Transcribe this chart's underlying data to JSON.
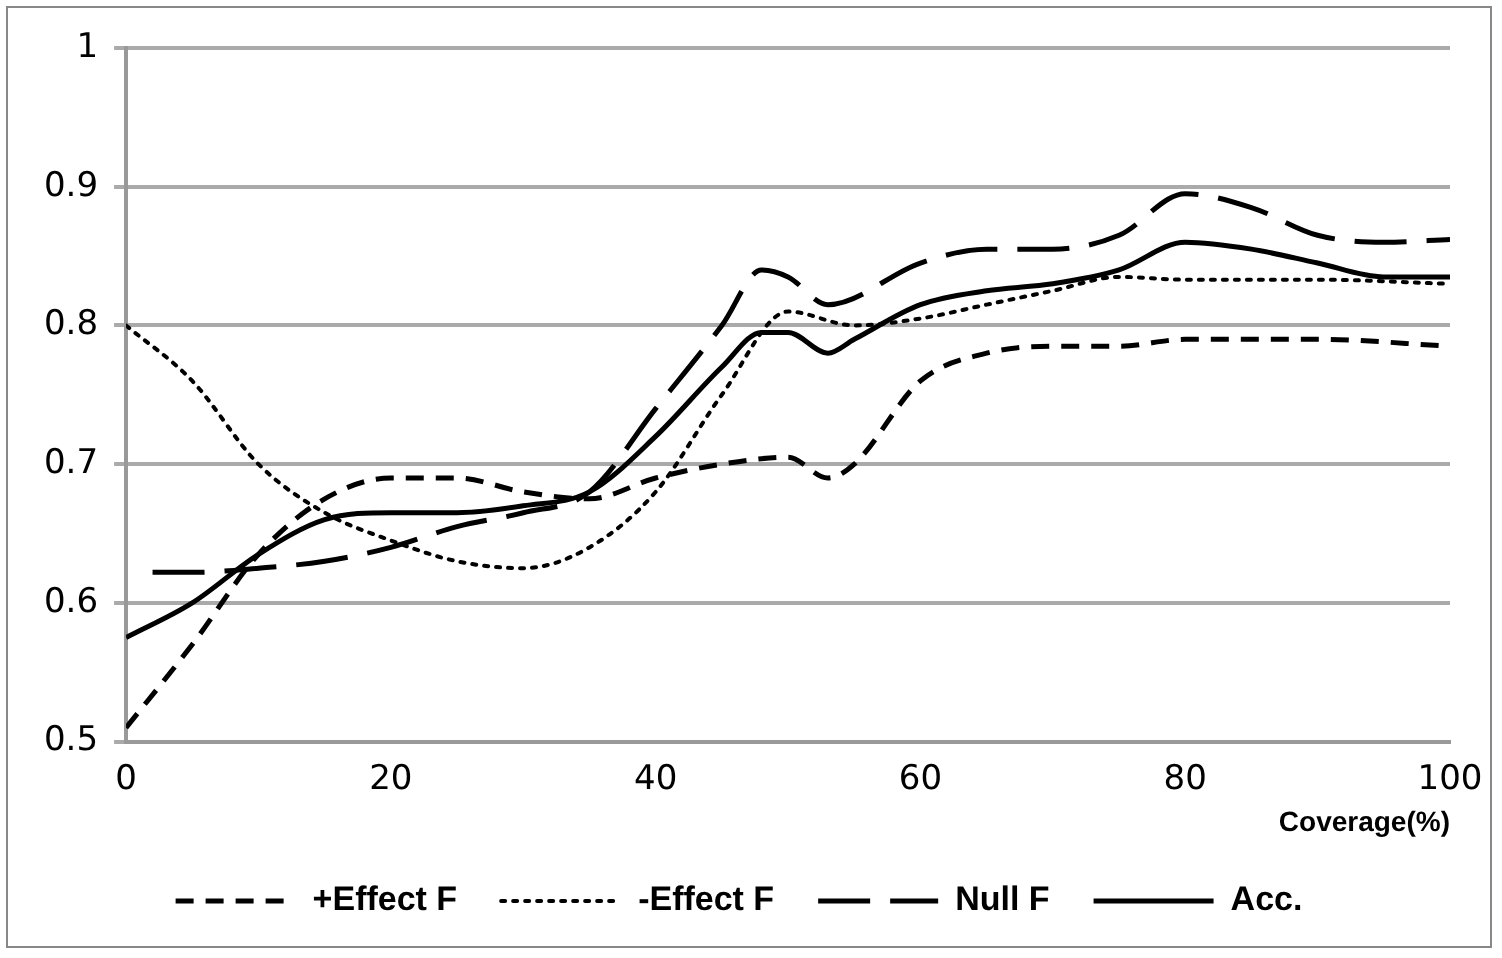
{
  "chart_data": {
    "type": "line",
    "xlabel": "Coverage(%)",
    "xlim": [
      0,
      100
    ],
    "xticks": [
      0,
      20,
      40,
      60,
      80,
      100
    ],
    "ylim": [
      0.5,
      1
    ],
    "yticks": [
      0.5,
      0.6,
      0.7,
      0.8,
      0.9,
      1
    ],
    "grid": "y",
    "legend": "bottom",
    "marker": "none",
    "series": [
      {
        "name": "+Effect F",
        "color": "#000000",
        "line_style": "dashed",
        "x": [
          0,
          5,
          10,
          15,
          20,
          25,
          30,
          35,
          40,
          45,
          50,
          53,
          55,
          60,
          65,
          70,
          75,
          80,
          90,
          100
        ],
        "values": [
          0.51,
          0.57,
          0.635,
          0.675,
          0.69,
          0.69,
          0.68,
          0.675,
          0.69,
          0.7,
          0.705,
          0.69,
          0.7,
          0.76,
          0.78,
          0.785,
          0.785,
          0.79,
          0.79,
          0.785
        ]
      },
      {
        "name": "-Effect F",
        "color": "#000000",
        "line_style": "dotted",
        "x": [
          0,
          5,
          10,
          15,
          20,
          25,
          30,
          35,
          40,
          45,
          50,
          55,
          60,
          65,
          70,
          75,
          80,
          90,
          100
        ],
        "values": [
          0.8,
          0.76,
          0.7,
          0.665,
          0.645,
          0.63,
          0.625,
          0.64,
          0.68,
          0.75,
          0.81,
          0.8,
          0.805,
          0.815,
          0.825,
          0.835,
          0.833,
          0.833,
          0.83
        ]
      },
      {
        "name": "Null F",
        "color": "#000000",
        "line_style": "dashed",
        "x": [
          2,
          5,
          10,
          15,
          20,
          25,
          30,
          35,
          40,
          45,
          48,
          50,
          53,
          60,
          65,
          70,
          75,
          80,
          85,
          90,
          95,
          100
        ],
        "values": [
          0.622,
          0.622,
          0.625,
          0.63,
          0.64,
          0.655,
          0.665,
          0.68,
          0.74,
          0.8,
          0.84,
          0.835,
          0.815,
          0.845,
          0.855,
          0.855,
          0.865,
          0.895,
          0.885,
          0.865,
          0.86,
          0.862
        ]
      },
      {
        "name": "Acc.",
        "color": "#000000",
        "line_style": "solid",
        "x": [
          0,
          5,
          10,
          15,
          20,
          25,
          30,
          35,
          40,
          45,
          48,
          50,
          53,
          55,
          60,
          65,
          70,
          75,
          80,
          85,
          90,
          95,
          100
        ],
        "values": [
          0.575,
          0.6,
          0.635,
          0.66,
          0.665,
          0.665,
          0.67,
          0.68,
          0.72,
          0.77,
          0.795,
          0.795,
          0.78,
          0.79,
          0.815,
          0.825,
          0.83,
          0.84,
          0.86,
          0.855,
          0.845,
          0.835,
          0.835
        ]
      }
    ]
  }
}
